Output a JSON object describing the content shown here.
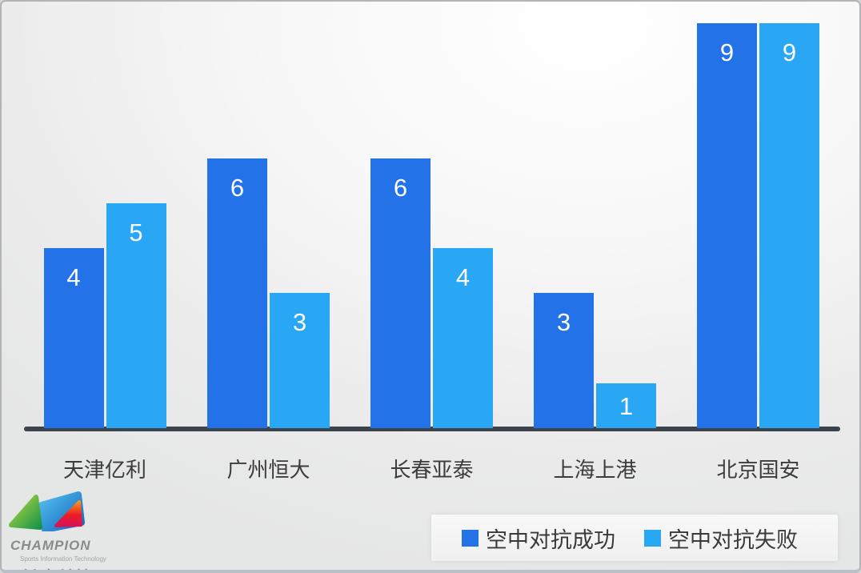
{
  "branding": {
    "name": "CHAMPION",
    "subtitle": "Sports Information Technology",
    "chinese_name": "创冰科技"
  },
  "legend": {
    "items": [
      {
        "label": "空中对抗成功",
        "color": "#2472e8"
      },
      {
        "label": "空中对抗失败",
        "color": "#29a6f4"
      }
    ]
  },
  "colors": {
    "series_success": "#2472e8",
    "series_fail": "#29a6f4",
    "axis": "#3c434a",
    "category_text": "#3c3c3c",
    "value_text": "#ffffff"
  },
  "chart_data": {
    "type": "bar",
    "categories": [
      "天津亿利",
      "广州恒大",
      "长春亚泰",
      "上海上港",
      "北京国安"
    ],
    "series": [
      {
        "name": "空中对抗成功",
        "color": "#2472e8",
        "values": [
          4,
          6,
          6,
          3,
          9
        ]
      },
      {
        "name": "空中对抗失败",
        "color": "#29a6f4",
        "values": [
          5,
          3,
          4,
          1,
          9
        ]
      }
    ],
    "title": "",
    "xlabel": "",
    "ylabel": "",
    "ylim": [
      0,
      9
    ],
    "grid": false,
    "data_labels": true,
    "legend_position": "bottom-right"
  }
}
